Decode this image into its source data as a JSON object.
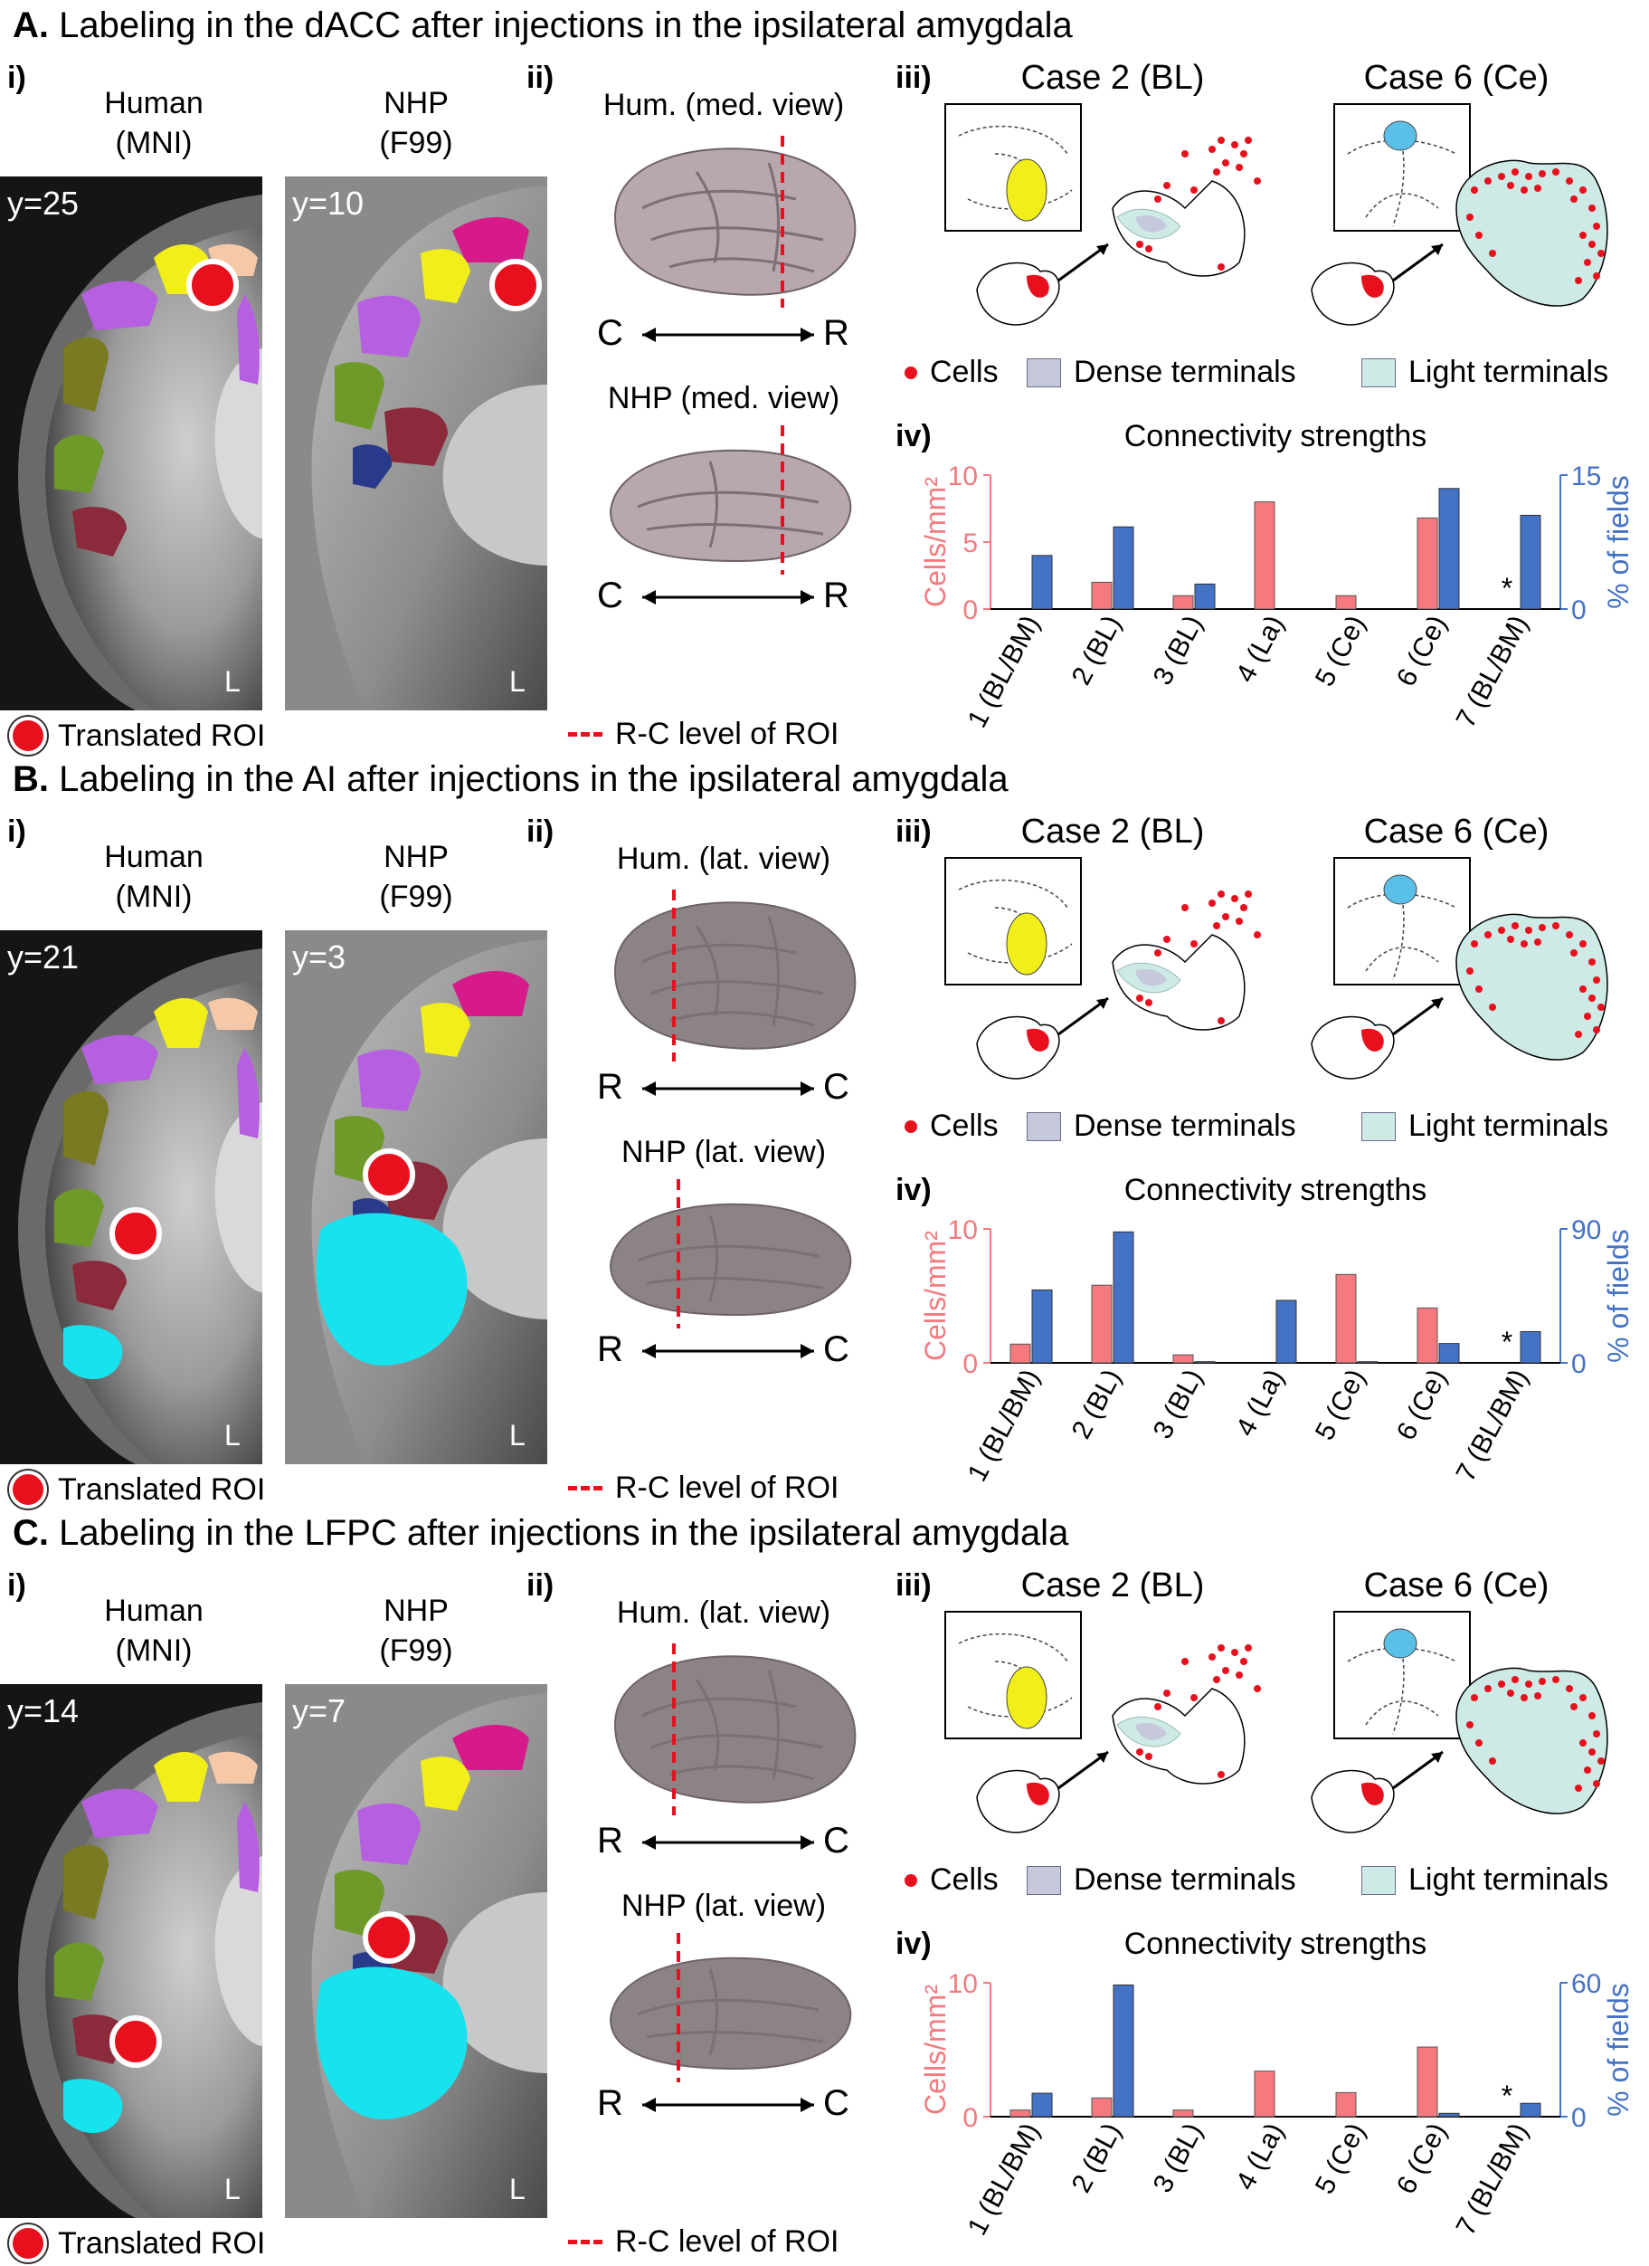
{
  "panels": [
    {
      "letter": "A.",
      "title": "Labeling in the dACC after injections in the ipsilateral amygdala",
      "i_label": "i)",
      "human_label_1": "Human",
      "human_label_2": "(MNI)",
      "nhp_label_1": "NHP",
      "nhp_label_2": "(F99)",
      "human_coord": "y=25",
      "nhp_coord": "y=10",
      "side_mark": "L",
      "roi_legend": "Translated ROI",
      "ii_label": "ii)",
      "hum_view": "Hum. (med. view)",
      "nhp_view": "NHP (med. view)",
      "axis_left": "C",
      "axis_right": "R",
      "rc_legend": "R-C level of ROI",
      "iii_label": "iii)",
      "case_a": "Case 2 (BL)",
      "case_b": "Case 6 (Ce)",
      "leg_cells": "Cells",
      "leg_dense": "Dense terminals",
      "leg_light": "Light terminals",
      "iv_label": "iv)",
      "colors": {
        "cells": "#e8101d",
        "dense": "#c6c9dc",
        "light": "#cdeae6",
        "injection_bl": "#f2ee1a",
        "injection_ce": "#5bc0e8"
      }
    },
    {
      "letter": "B.",
      "title": "Labeling in the AI after injections in the ipsilateral amygdala",
      "i_label": "i)",
      "human_label_1": "Human",
      "human_label_2": "(MNI)",
      "nhp_label_1": "NHP",
      "nhp_label_2": "(F99)",
      "human_coord": "y=21",
      "nhp_coord": "y=3",
      "side_mark": "L",
      "roi_legend": "Translated ROI",
      "ii_label": "ii)",
      "hum_view": "Hum. (lat. view)",
      "nhp_view": "NHP (lat. view)",
      "axis_left": "R",
      "axis_right": "C",
      "rc_legend": "R-C level of ROI",
      "iii_label": "iii)",
      "case_a": "Case 2 (BL)",
      "case_b": "Case 6 (Ce)",
      "leg_cells": "Cells",
      "leg_dense": "Dense terminals",
      "leg_light": "Light terminals",
      "iv_label": "iv)",
      "colors": {
        "cells": "#e8101d",
        "dense": "#c6c9dc",
        "light": "#cdeae6",
        "injection_bl": "#f2ee1a",
        "injection_ce": "#5bc0e8"
      }
    },
    {
      "letter": "C.",
      "title": "Labeling in the LFPC after injections in the ipsilateral amygdala",
      "i_label": "i)",
      "human_label_1": "Human",
      "human_label_2": "(MNI)",
      "nhp_label_1": "NHP",
      "nhp_label_2": "(F99)",
      "human_coord": "y=14",
      "nhp_coord": "y=7",
      "side_mark": "L",
      "roi_legend": "Translated ROI",
      "ii_label": "ii)",
      "hum_view": "Hum. (lat. view)",
      "nhp_view": "NHP (lat. view)",
      "axis_left": "R",
      "axis_right": "C",
      "rc_legend": "R-C level of ROI",
      "iii_label": "iii)",
      "case_a": "Case 2 (BL)",
      "case_b": "Case 6 (Ce)",
      "leg_cells": "Cells",
      "leg_dense": "Dense terminals",
      "leg_light": "Light terminals",
      "iv_label": "iv)",
      "colors": {
        "cells": "#e8101d",
        "dense": "#c6c9dc",
        "light": "#cdeae6",
        "injection_bl": "#f2ee1a",
        "injection_ce": "#5bc0e8"
      }
    }
  ],
  "chart_data": [
    {
      "type": "bar",
      "title": "Connectivity strengths",
      "categories": [
        "1 (BL/BM)",
        "2 (BL)",
        "3 (BL)",
        "4 (La)",
        "5 (Ce)",
        "6 (Ce)",
        "7 (BL/BM)"
      ],
      "ylabel": "Cells/mm²",
      "y2label": "% of fields",
      "ylim": [
        0,
        10
      ],
      "y2lim": [
        0,
        15
      ],
      "yticks": [
        "0",
        "5",
        "10"
      ],
      "y2ticks": [
        "0",
        "15"
      ],
      "series": [
        {
          "name": "Cells/mm²",
          "axis": "left",
          "color": "#f47a7f",
          "values": [
            0,
            2,
            1,
            8,
            1,
            6.8,
            null
          ]
        },
        {
          "name": "% of fields",
          "axis": "right",
          "color": "#4472c4",
          "values": [
            6,
            9.2,
            2.8,
            0,
            0,
            13.5,
            10.5
          ]
        }
      ],
      "annotation": "*",
      "annotation_category": 6
    },
    {
      "type": "bar",
      "title": "Connectivity strengths",
      "categories": [
        "1 (BL/BM)",
        "2 (BL)",
        "3 (BL)",
        "4 (La)",
        "5 (Ce)",
        "6 (Ce)",
        "7 (BL/BM)"
      ],
      "ylabel": "Cells/mm²",
      "y2label": "% of fields",
      "ylim": [
        0,
        10
      ],
      "y2lim": [
        0,
        90
      ],
      "yticks": [
        "0",
        "10"
      ],
      "y2ticks": [
        "0",
        "90"
      ],
      "series": [
        {
          "name": "Cells/mm²",
          "axis": "left",
          "color": "#f47a7f",
          "values": [
            1.4,
            5.8,
            0.6,
            0,
            6.6,
            4.1,
            null
          ]
        },
        {
          "name": "% of fields",
          "axis": "right",
          "color": "#4472c4",
          "values": [
            49,
            88,
            0.8,
            42,
            0.8,
            13,
            21
          ]
        }
      ],
      "annotation": "*",
      "annotation_category": 6
    },
    {
      "type": "bar",
      "title": "Connectivity strengths",
      "categories": [
        "1 (BL/BM)",
        "2 (BL)",
        "3 (BL)",
        "4 (La)",
        "5 (Ce)",
        "6 (Ce)",
        "7 (BL/BM)"
      ],
      "ylabel": "Cells/mm²",
      "y2label": "% of fields",
      "ylim": [
        0,
        10
      ],
      "y2lim": [
        0,
        60
      ],
      "yticks": [
        "0",
        "10"
      ],
      "y2ticks": [
        "0",
        "60"
      ],
      "series": [
        {
          "name": "Cells/mm²",
          "axis": "left",
          "color": "#f47a7f",
          "values": [
            0.5,
            1.4,
            0.5,
            3.4,
            1.8,
            5.2,
            null
          ]
        },
        {
          "name": "% of fields",
          "axis": "right",
          "color": "#4472c4",
          "values": [
            10.5,
            59,
            0,
            0,
            0,
            1.5,
            6
          ]
        }
      ],
      "annotation": "*",
      "annotation_category": 6
    }
  ]
}
